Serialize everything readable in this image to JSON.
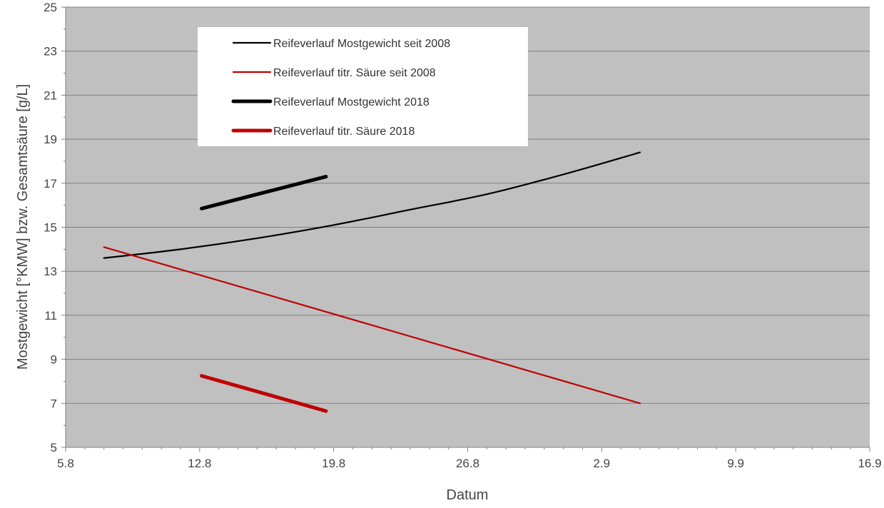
{
  "chart_data": {
    "type": "line",
    "title": "",
    "xlabel": "Datum",
    "ylabel": "Mostgewicht [°KMW] bzw. Gesamtsäure [g/L]",
    "x_tick_labels": [
      "5.8",
      "12.8",
      "19.8",
      "26.8",
      "2.9",
      "9.9",
      "16.9"
    ],
    "xlim": [
      0,
      42
    ],
    "ylim": [
      5,
      25
    ],
    "y_ticks": [
      5,
      7,
      9,
      11,
      13,
      15,
      17,
      19,
      21,
      23,
      25
    ],
    "grid": "horizontal",
    "legend_position": "top-left",
    "plot_background": "#c0c0c0",
    "series": [
      {
        "name": "Reifeverlauf Mostgewicht seit 2008",
        "color": "#000000",
        "line_weight": "thin",
        "points": [
          [
            2,
            13.6
          ],
          [
            6,
            14.0
          ],
          [
            10,
            14.5
          ],
          [
            14,
            15.1
          ],
          [
            18,
            15.8
          ],
          [
            22,
            16.5
          ],
          [
            26,
            17.4
          ],
          [
            30,
            18.4
          ]
        ]
      },
      {
        "name": "Reifeverlauf titr. Säure seit 2008",
        "color": "#c00000",
        "line_weight": "thin",
        "points": [
          [
            2,
            14.1
          ],
          [
            30,
            7.0
          ]
        ]
      },
      {
        "name": "Reifeverlauf Mostgewicht 2018",
        "color": "#000000",
        "line_weight": "thick",
        "points": [
          [
            7.1,
            15.85
          ],
          [
            13.6,
            17.3
          ]
        ]
      },
      {
        "name": "Reifeverlauf titr. Säure 2018",
        "color": "#c00000",
        "line_weight": "thick",
        "points": [
          [
            7.1,
            8.25
          ],
          [
            13.6,
            6.65
          ]
        ]
      }
    ]
  }
}
